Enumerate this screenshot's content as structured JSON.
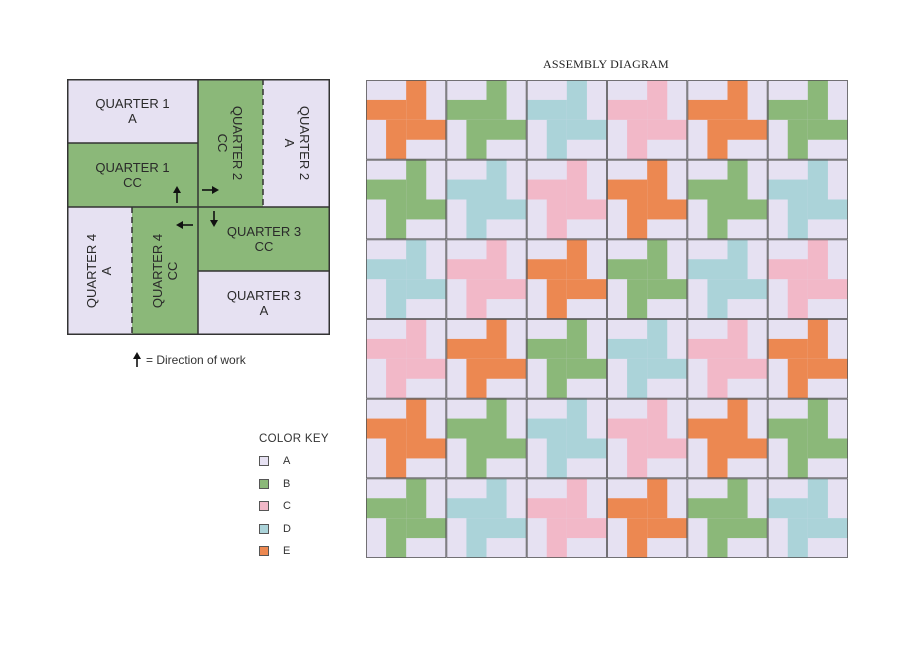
{
  "left_block": {
    "quarters": [
      {
        "id": "q1a",
        "line1": "QUARTER 1",
        "line2": "A"
      },
      {
        "id": "q1cc",
        "line1": "QUARTER 1",
        "line2": "CC"
      },
      {
        "id": "q2cc",
        "line1": "QUARTER 2",
        "line2": "CC"
      },
      {
        "id": "q2a",
        "line1": "QUARTER 2",
        "line2": "A"
      },
      {
        "id": "q3cc",
        "line1": "QUARTER 3",
        "line2": "CC"
      },
      {
        "id": "q3a",
        "line1": "QUARTER 3",
        "line2": "A"
      },
      {
        "id": "q4a",
        "line1": "QUARTER 4",
        "line2": "A"
      },
      {
        "id": "q4cc",
        "line1": "QUARTER 4",
        "line2": "CC"
      }
    ],
    "direction_legend": "= Direction of work"
  },
  "color_key": {
    "title": "COLOR KEY",
    "items": [
      {
        "label": "A",
        "color": "#e6e1f2"
      },
      {
        "label": "B",
        "color": "#8bb879"
      },
      {
        "label": "C",
        "color": "#f2b8c8"
      },
      {
        "label": "D",
        "color": "#abd3d9"
      },
      {
        "label": "E",
        "color": "#ec8851"
      }
    ]
  },
  "colors": {
    "background_light": "#e6e1f2",
    "contrast_green": "#8bb879"
  },
  "assembly_diagram": {
    "title": "ASSEMBLY DIAGRAM",
    "rows": [
      [
        "E",
        "B",
        "D",
        "C",
        "E",
        "B"
      ],
      [
        "B",
        "D",
        "C",
        "E",
        "B",
        "D"
      ],
      [
        "D",
        "C",
        "E",
        "B",
        "D",
        "C"
      ],
      [
        "C",
        "E",
        "B",
        "D",
        "C",
        "E"
      ],
      [
        "E",
        "B",
        "D",
        "C",
        "E",
        "B"
      ],
      [
        "B",
        "D",
        "C",
        "E",
        "B",
        "D"
      ]
    ]
  }
}
